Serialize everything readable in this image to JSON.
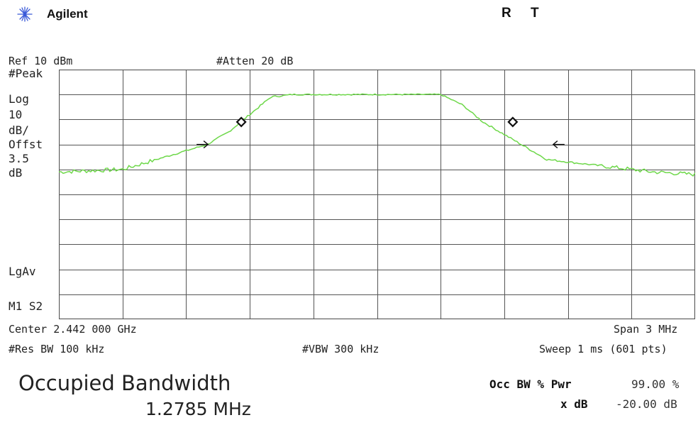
{
  "header": {
    "brand": "Agilent",
    "status_r": "R",
    "status_t": "T",
    "logo_icon": "agilent-spark-icon"
  },
  "top_labels": {
    "ref": "Ref 10 dBm",
    "atten": "#Atten 20 dB"
  },
  "side_labels": {
    "peak": "#Peak",
    "log": "Log",
    "scale_value": "10",
    "scale_unit": "dB/",
    "offset_label": "Offst",
    "offset_value": "3.5",
    "offset_unit": "dB",
    "lgav": "LgAv",
    "m1s2": "M1  S2"
  },
  "bottom_labels": {
    "center": "Center 2.442 000 GHz",
    "span": "Span 3 MHz",
    "res_bw": "#Res BW 100 kHz",
    "vbw": "#VBW 300 kHz",
    "sweep": "Sweep 1 ms (601 pts)"
  },
  "measurement": {
    "title": "Occupied Bandwidth",
    "value": "1.2785 MHz",
    "occ_label": "Occ BW % Pwr",
    "occ_value": "99.00 %",
    "xdb_label": "x dB",
    "xdb_value": "-20.00 dB"
  },
  "colors": {
    "trace": "#6ed84a",
    "grid": "#555555"
  },
  "chart_data": {
    "type": "line",
    "x_unit": "MHz offset from center",
    "y_unit": "dBm",
    "ylim": [
      -90,
      10
    ],
    "xlim": [
      -1.5,
      1.5
    ],
    "grid": true,
    "x": [
      -1.5,
      -1.2,
      -1.0,
      -0.8,
      -0.7,
      -0.6,
      -0.5,
      -0.4,
      -0.3,
      -0.1,
      0.0,
      0.1,
      0.3,
      0.4,
      0.5,
      0.6,
      0.7,
      0.8,
      1.0,
      1.2,
      1.3,
      1.5
    ],
    "y": [
      -31,
      -30,
      -25,
      -20,
      -15,
      -8,
      -1,
      0,
      0,
      0,
      0,
      0,
      0,
      -4,
      -11,
      -16,
      -21,
      -26,
      -28,
      -30,
      -31,
      -32
    ],
    "markers": [
      {
        "x": -0.64,
        "y": -11,
        "shape": "diamond"
      },
      {
        "x": 0.64,
        "y": -11,
        "shape": "diamond"
      }
    ],
    "obw_arrows": [
      {
        "x": -0.64,
        "y": -20,
        "direction": "right"
      },
      {
        "x": 0.64,
        "y": -20,
        "direction": "left"
      }
    ]
  }
}
